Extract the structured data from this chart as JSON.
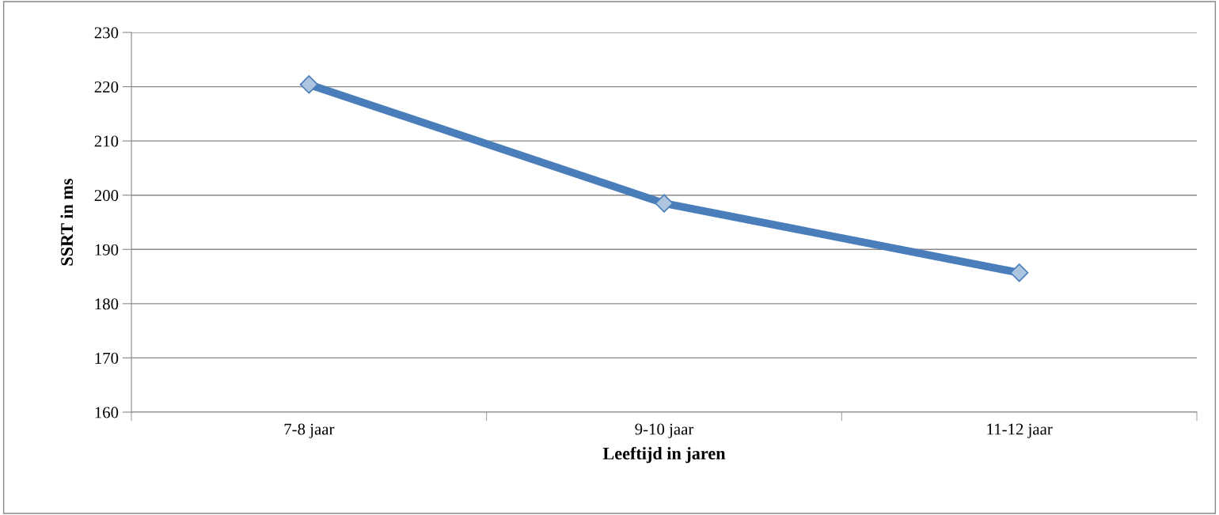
{
  "chart_data": {
    "type": "line",
    "xlabel": "Leeftijd in jaren",
    "ylabel": "SSRT in ms",
    "categories": [
      "7-8 jaar",
      "9-10 jaar",
      "11-12 jaar"
    ],
    "series": [
      {
        "color": "#4a7ebb",
        "values": [
          220.4,
          198.5,
          185.7
        ]
      }
    ],
    "ylim": [
      160,
      230
    ],
    "yticks": [
      160,
      170,
      180,
      190,
      200,
      210,
      220,
      230
    ],
    "grid": "y",
    "marker": "diamond",
    "line_style": "solid"
  }
}
